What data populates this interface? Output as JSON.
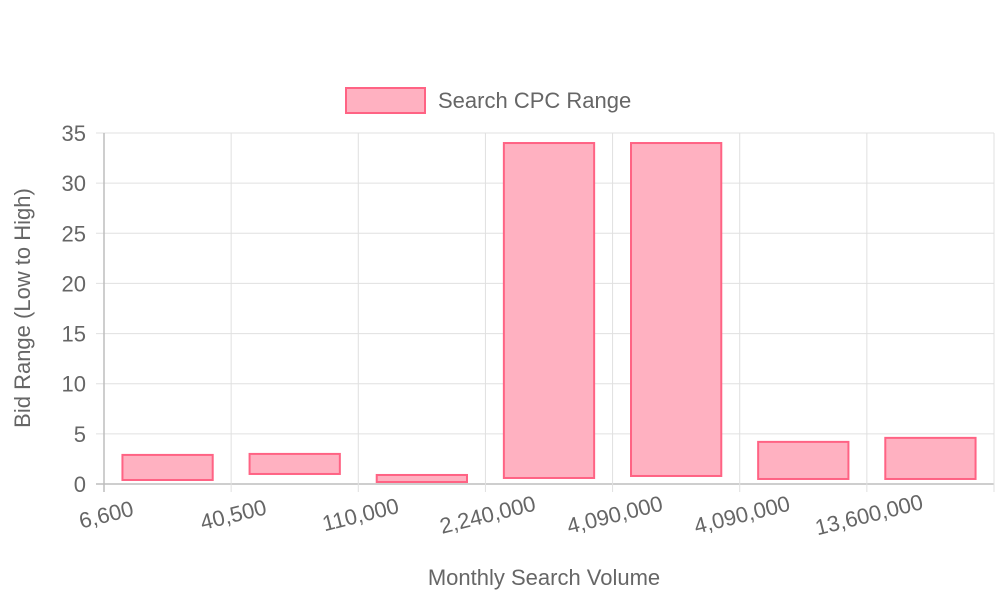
{
  "chart_data": {
    "type": "bar",
    "chart_subtype": "floating-range",
    "xlabel": "Monthly Search Volume",
    "ylabel": "Bid Range (Low to High)",
    "categories": [
      "6,600",
      "40,500",
      "110,000",
      "2,240,000",
      "4,090,000",
      "4,090,000",
      "13,600,000"
    ],
    "ylim": [
      0,
      35
    ],
    "yticks": [
      0,
      5,
      10,
      15,
      20,
      25,
      30,
      35
    ],
    "grid": true,
    "legend_position": "top",
    "series": [
      {
        "name": "Search CPC Range",
        "color": "#ff6384",
        "fill": "#ffb1c1",
        "ranges": [
          [
            0.4,
            2.9
          ],
          [
            1.0,
            3.0
          ],
          [
            0.2,
            0.9
          ],
          [
            0.6,
            34.0
          ],
          [
            0.8,
            34.0
          ],
          [
            0.5,
            4.2
          ],
          [
            0.5,
            4.6
          ]
        ]
      }
    ]
  }
}
